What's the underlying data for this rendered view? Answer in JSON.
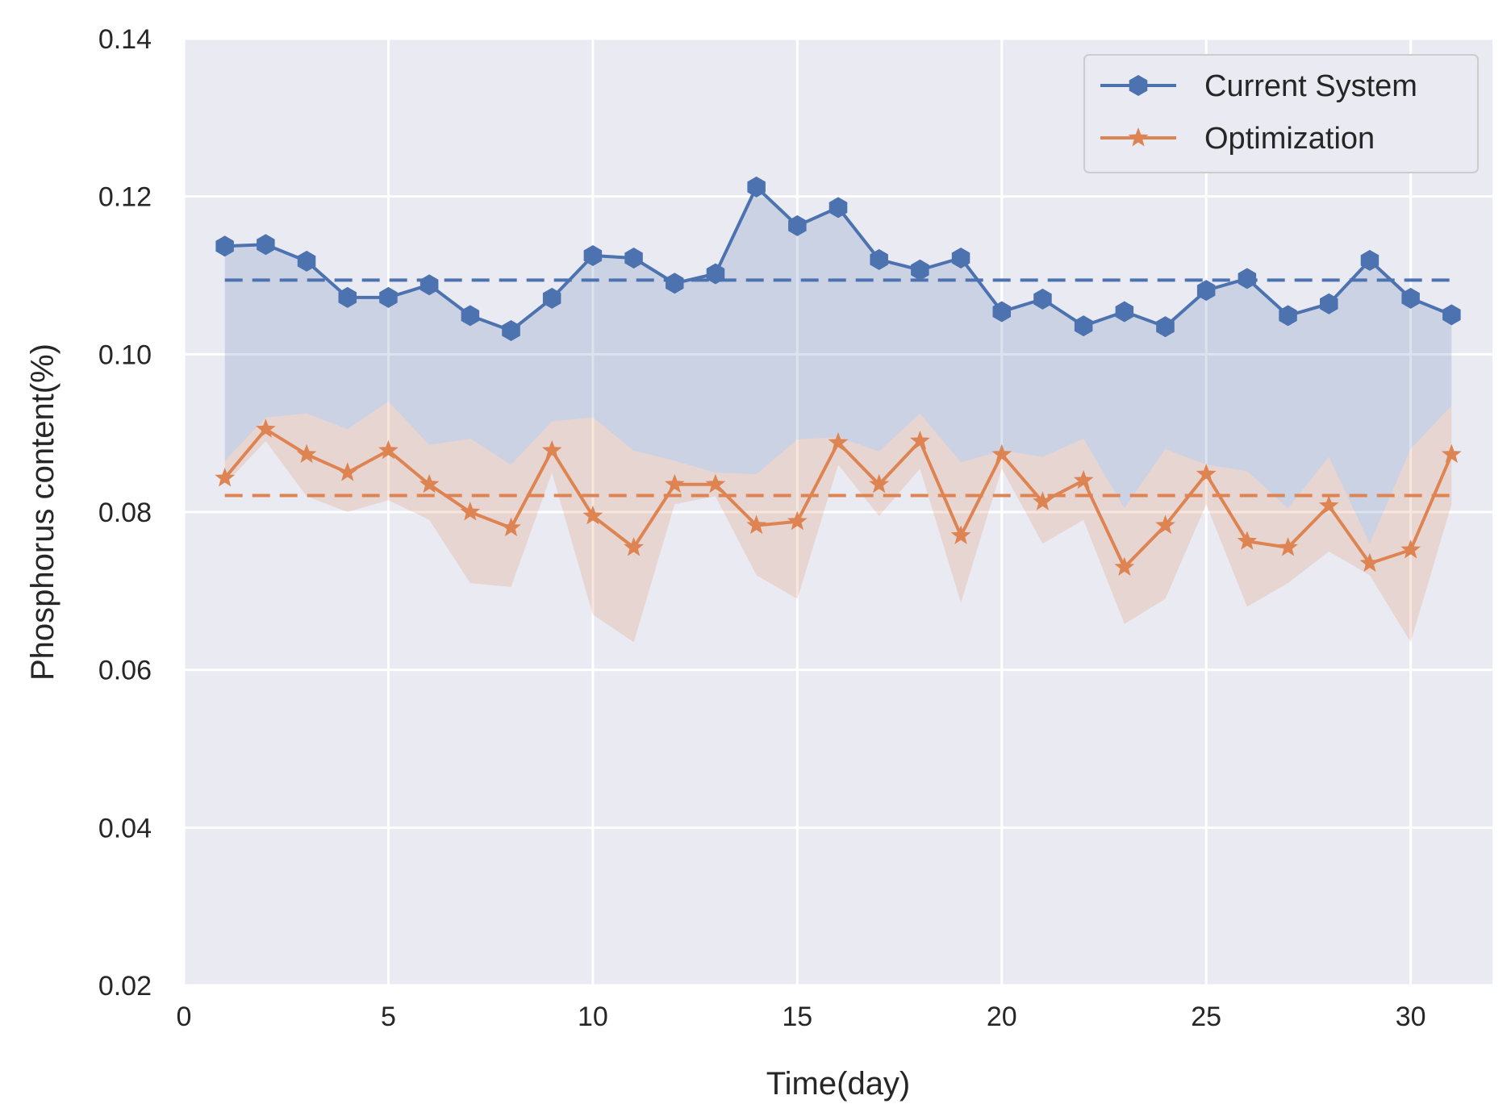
{
  "chart_data": {
    "type": "line",
    "title": "",
    "xlabel": "Time(day)",
    "ylabel": "Phosphorus content(%)",
    "xlim": [
      0,
      32
    ],
    "ylim": [
      0.02,
      0.14
    ],
    "xticks": [
      0,
      5,
      10,
      15,
      20,
      25,
      30
    ],
    "xtick_labels": [
      "0",
      "5",
      "10",
      "15",
      "20",
      "25",
      "30"
    ],
    "yticks": [
      0.02,
      0.04,
      0.06,
      0.08,
      0.1,
      0.12,
      0.14
    ],
    "ytick_labels": [
      "0.02",
      "0.04",
      "0.06",
      "0.08",
      "0.10",
      "0.12",
      "0.14"
    ],
    "grid": true,
    "legend_position": "top-right",
    "x": [
      1,
      2,
      3,
      4,
      5,
      6,
      7,
      8,
      9,
      10,
      11,
      12,
      13,
      14,
      15,
      16,
      17,
      18,
      19,
      20,
      21,
      22,
      23,
      24,
      25,
      26,
      27,
      28,
      29,
      30,
      31
    ],
    "series": [
      {
        "name": "Current System",
        "color": "#4c72b0",
        "marker": "hexagon",
        "values": [
          0.1137,
          0.1139,
          0.1118,
          0.1072,
          0.1072,
          0.1088,
          0.1049,
          0.103,
          0.1071,
          0.1125,
          0.1122,
          0.109,
          0.1102,
          0.1212,
          0.1163,
          0.1186,
          0.112,
          0.1107,
          0.1122,
          0.1054,
          0.107,
          0.1036,
          0.1054,
          0.1035,
          0.1081,
          0.1096,
          0.1049,
          0.1064,
          0.1119,
          0.1071,
          0.105
        ],
        "mean": 0.1094,
        "band_lower": [
          0.0865,
          0.092,
          0.0925,
          0.0905,
          0.094,
          0.0885,
          0.0893,
          0.086,
          0.0915,
          0.092,
          0.0878,
          0.0865,
          0.085,
          0.0848,
          0.0892,
          0.0895,
          0.0877,
          0.0925,
          0.0863,
          0.0878,
          0.087,
          0.0893,
          0.0805,
          0.088,
          0.086,
          0.0852,
          0.0805,
          0.087,
          0.076,
          0.088,
          0.0935
        ]
      },
      {
        "name": "Optimization",
        "color": "#dd8452",
        "marker": "star",
        "values": [
          0.0843,
          0.0905,
          0.0873,
          0.085,
          0.0878,
          0.0835,
          0.08,
          0.078,
          0.0878,
          0.0795,
          0.0755,
          0.0835,
          0.0835,
          0.0783,
          0.0788,
          0.0888,
          0.0835,
          0.089,
          0.077,
          0.0873,
          0.0813,
          0.084,
          0.073,
          0.0783,
          0.0848,
          0.0763,
          0.0755,
          0.0808,
          0.0735,
          0.0752,
          0.0873
        ],
        "mean": 0.0821,
        "band_upper": [
          0.0865,
          0.092,
          0.0925,
          0.0905,
          0.094,
          0.0885,
          0.0893,
          0.086,
          0.0915,
          0.092,
          0.0878,
          0.0865,
          0.085,
          0.0848,
          0.0892,
          0.0895,
          0.0877,
          0.0925,
          0.0863,
          0.0878,
          0.087,
          0.0893,
          0.0805,
          0.088,
          0.086,
          0.0852,
          0.0805,
          0.087,
          0.076,
          0.088,
          0.0935
        ],
        "band_lower": [
          0.0835,
          0.089,
          0.082,
          0.08,
          0.0815,
          0.079,
          0.071,
          0.0705,
          0.085,
          0.067,
          0.0635,
          0.081,
          0.082,
          0.072,
          0.069,
          0.086,
          0.0795,
          0.0855,
          0.0685,
          0.0855,
          0.076,
          0.079,
          0.0658,
          0.069,
          0.081,
          0.068,
          0.071,
          0.075,
          0.072,
          0.0635,
          0.081
        ]
      }
    ]
  }
}
